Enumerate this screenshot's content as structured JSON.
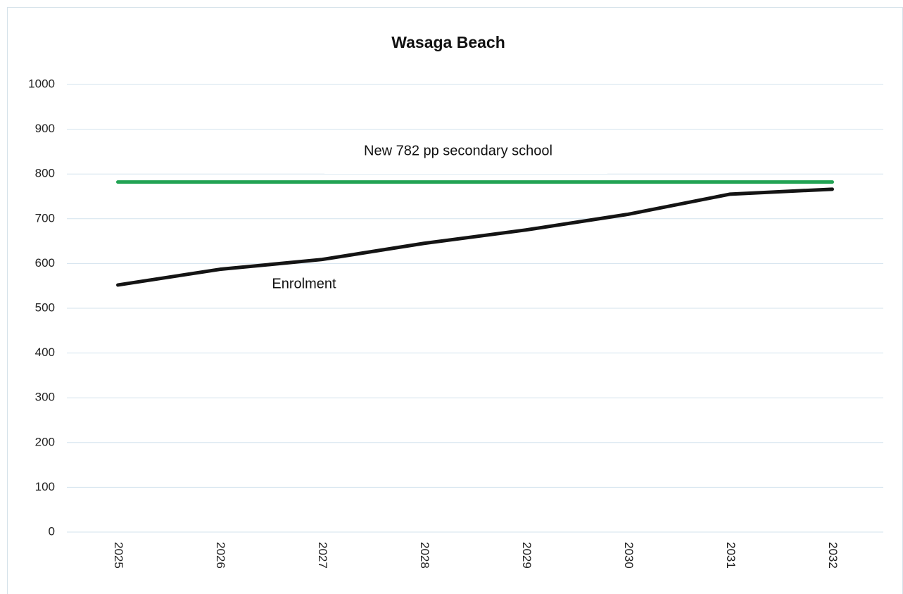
{
  "chart_data": {
    "type": "line",
    "title": "Wasaga Beach",
    "categories": [
      "2025",
      "2026",
      "2027",
      "2028",
      "2029",
      "2030",
      "2031",
      "2032"
    ],
    "series": [
      {
        "name": "Enrolment",
        "color": "#141414",
        "values": [
          552,
          587,
          609,
          645,
          675,
          710,
          755,
          766
        ]
      },
      {
        "name": "New 782 pp secondary school",
        "color": "#22a354",
        "values": [
          782,
          782,
          782,
          782,
          782,
          782,
          782,
          782
        ]
      }
    ],
    "ylim": [
      0,
      1000
    ],
    "yticks": [
      0,
      100,
      200,
      300,
      400,
      500,
      600,
      700,
      800,
      900,
      1000
    ],
    "grid": true
  }
}
